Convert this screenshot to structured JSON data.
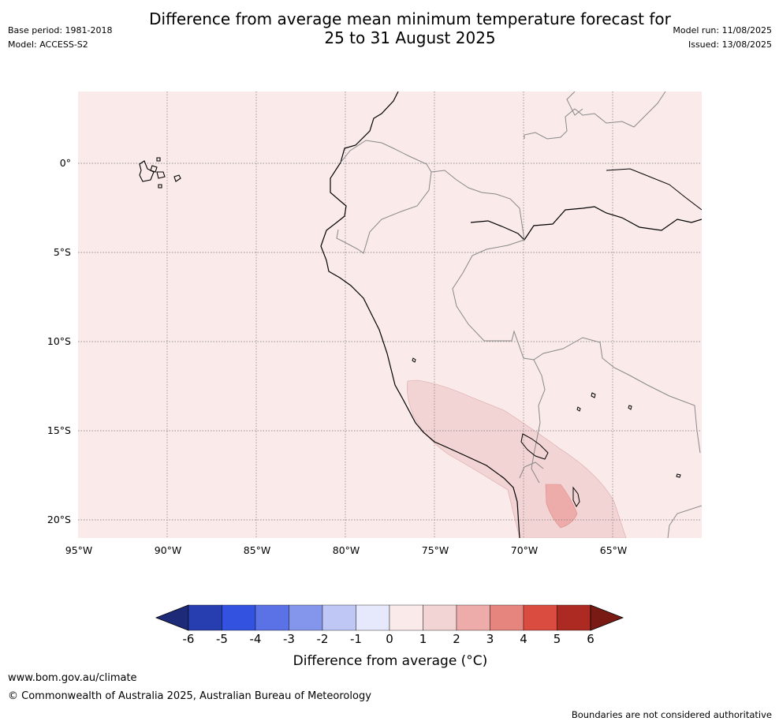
{
  "title_line1": "Difference from average mean minimum temperature forecast for",
  "title_line2": "25 to 31 August 2025",
  "base_period": "Base period: 1981-2018",
  "model": "Model: ACCESS-S2",
  "model_run": "Model run: 11/08/2025",
  "issued": "Issued: 13/08/2025",
  "lat_labels": [
    "0°",
    "5°S",
    "10°S",
    "15°S",
    "20°S"
  ],
  "lon_labels": [
    "95°W",
    "90°W",
    "85°W",
    "80°W",
    "75°W",
    "70°W",
    "65°W"
  ],
  "colorbar": {
    "ticks": [
      "-6",
      "-5",
      "-4",
      "-3",
      "-2",
      "-1",
      "0",
      "1",
      "2",
      "3",
      "4",
      "5",
      "6"
    ],
    "colors": [
      "#1d2a78",
      "#263eb0",
      "#3352e0",
      "#5a72e6",
      "#8496ec",
      "#bfc7f5",
      "#e6e9fb",
      "#fbeaea",
      "#f3d4d4",
      "#edaba9",
      "#e5857d",
      "#db4c40",
      "#ad2a22",
      "#7a1a15"
    ],
    "label": "Difference from average ($^\\circ$C)",
    "label_display": "Difference from average (°C)"
  },
  "map_colors": {
    "base": "#fbeaea",
    "anomaly_1_2": "#f3d4d4",
    "anomaly_2_3": "#edaba9"
  },
  "footer_url": "www.bom.gov.au/climate",
  "footer_copyright": "© Commonwealth of Australia 2025, Australian Bureau of Meteorology",
  "footer_note": "Boundaries are not considered authoritative"
}
